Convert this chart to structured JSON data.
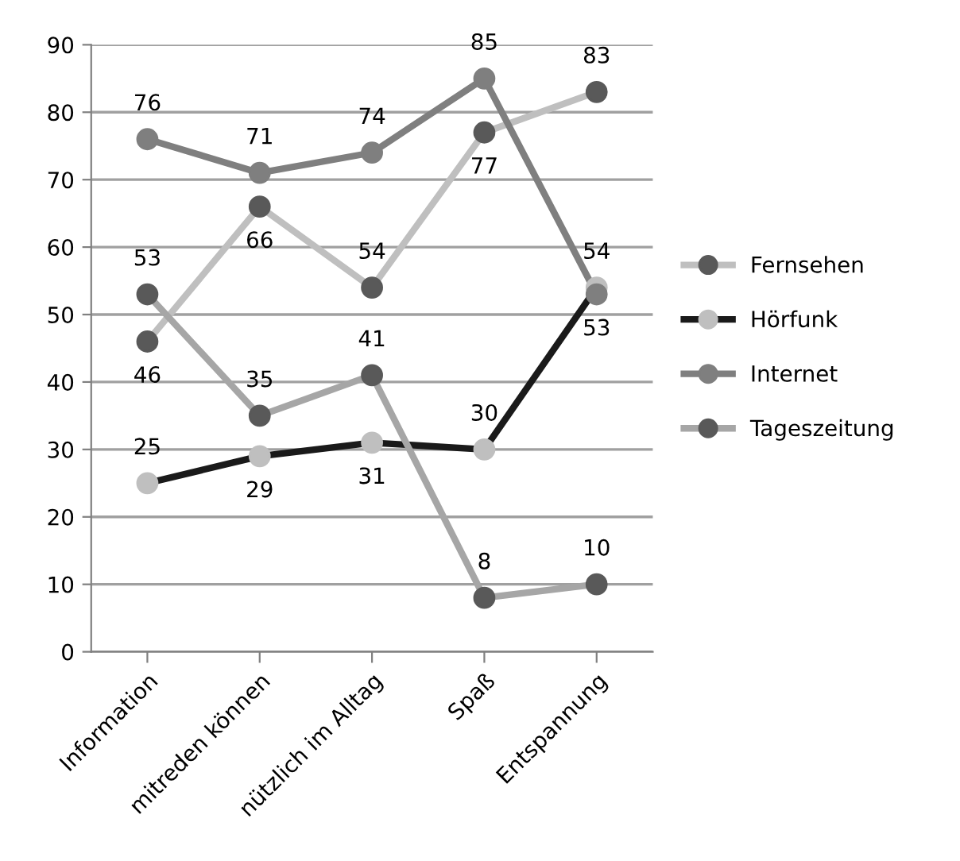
{
  "chart_data": {
    "type": "line",
    "categories": [
      "Information",
      "mitreden können",
      "nützlich im Alltag",
      "Spaß",
      "Entspannung"
    ],
    "series": [
      {
        "name": "Fernsehen",
        "color": "#bfbfbf",
        "colors": [
          "#595959",
          "#595959",
          "#595959",
          "#595959",
          "#595959"
        ],
        "values": [
          46,
          66,
          54,
          77,
          83
        ]
      },
      {
        "name": "Hörfunk",
        "color": "#1a1a1a",
        "colors": [
          "#bfbfbf",
          "#bfbfbf",
          "#bfbfbf",
          "#bfbfbf",
          "#bfbfbf"
        ],
        "values": [
          25,
          29,
          31,
          30,
          54
        ]
      },
      {
        "name": "Internet",
        "color": "#7f7f7f",
        "colors": [
          "#7f7f7f",
          "#7f7f7f",
          "#7f7f7f",
          "#7f7f7f",
          "#7f7f7f"
        ],
        "values": [
          76,
          71,
          74,
          85,
          53
        ]
      },
      {
        "name": "Tageszeitung",
        "color": "#a6a6a6",
        "colors": [
          "#595959",
          "#595959",
          "#595959",
          "#595959",
          "#595959"
        ],
        "values": [
          53,
          35,
          41,
          8,
          10
        ]
      }
    ],
    "ylim": [
      0,
      90
    ],
    "yticks": [
      0,
      10,
      20,
      30,
      40,
      50,
      60,
      70,
      80,
      90
    ],
    "grid": "y",
    "legend": "right",
    "marker": "circle",
    "line_style": "solid",
    "data_labels": true
  }
}
